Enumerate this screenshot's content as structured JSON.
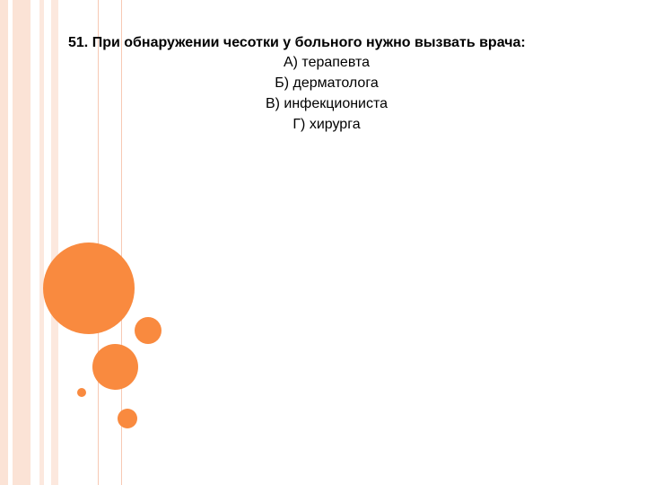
{
  "slide": {
    "question": "51. При обнаружении чесотки у больного нужно вызвать врача:",
    "options": [
      "А)  терапевта",
      "Б)  дерматолога",
      "В)  инфекциониста",
      "Г)  хирурга"
    ]
  },
  "colors": {
    "accent": "#f98a3f",
    "band": "#fbe3d6",
    "line": "#f7c9b4"
  }
}
